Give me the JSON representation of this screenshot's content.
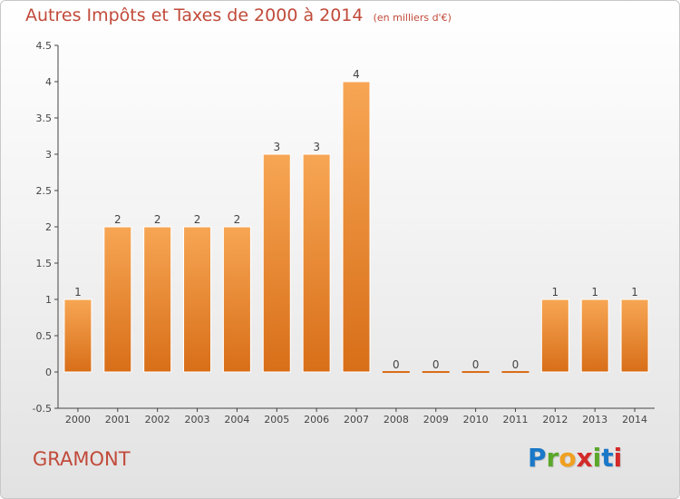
{
  "header": {
    "title": "Autres Impôts et Taxes de 2000 à 2014",
    "unit": "(en milliers d'€)"
  },
  "footer": {
    "commune": "GRAMONT",
    "logo_letters": [
      "P",
      "r",
      "o",
      "x",
      "i",
      "t",
      "i"
    ],
    "logo_colors": [
      "#1a78c8",
      "#5aa82a",
      "#f0a020",
      "#d42a2a",
      "#5aa82a",
      "#1a78c8",
      "#d42a2a"
    ]
  },
  "colors": {
    "bar_top": "#f7a654",
    "bar_bottom": "#d86e18",
    "bar_edge": "#ffffff",
    "accent": "#c14a3a",
    "grid": "#444444"
  },
  "chart_data": {
    "type": "bar",
    "categories": [
      "2000",
      "2001",
      "2002",
      "2003",
      "2004",
      "2005",
      "2006",
      "2007",
      "2008",
      "2009",
      "2010",
      "2011",
      "2012",
      "2013",
      "2014"
    ],
    "values": [
      1,
      2,
      2,
      2,
      2,
      3,
      3,
      4,
      0,
      0,
      0,
      0,
      1,
      1,
      1
    ],
    "data_labels": [
      "1",
      "2",
      "2",
      "2",
      "2",
      "3",
      "3",
      "4",
      "0",
      "0",
      "0",
      "0",
      "1",
      "1",
      "1"
    ],
    "yticks": [
      -0.5,
      0,
      0.5,
      1,
      1.5,
      2,
      2.5,
      3,
      3.5,
      4,
      4.5
    ],
    "ytick_labels": [
      "-0.5",
      "0",
      "0.5",
      "1",
      "1.5",
      "2",
      "2.5",
      "3",
      "3.5",
      "4",
      "4.5"
    ],
    "ylim": [
      -0.5,
      4.5
    ],
    "title": "Autres Impôts et Taxes de 2000 à 2014",
    "xlabel": "",
    "ylabel": "",
    "grid": false
  }
}
